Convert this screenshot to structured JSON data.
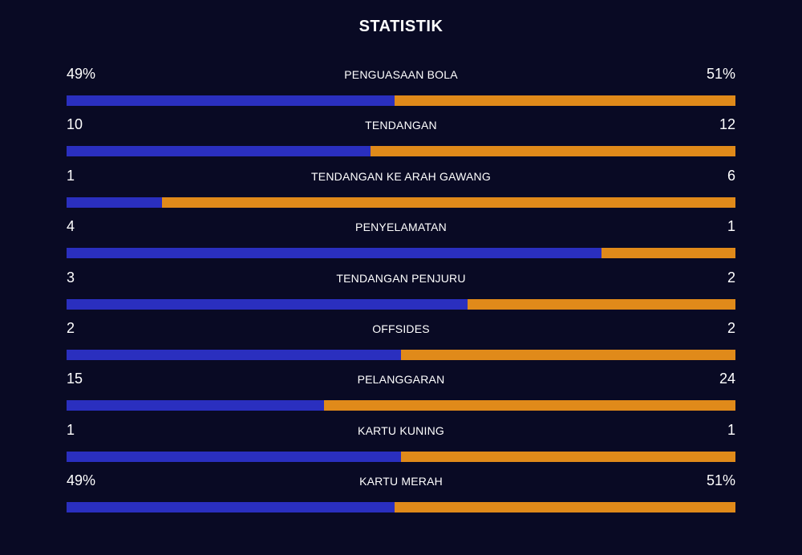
{
  "title": "STATISTIK",
  "colors": {
    "background": "#090a24",
    "home": "#2a2fbf",
    "away": "#e08a1a"
  },
  "stats": [
    {
      "label": "PENGUASAAN BOLA",
      "left": "49%",
      "right": "51%",
      "left_share": 0.49
    },
    {
      "label": "TENDANGAN",
      "left": "10",
      "right": "12",
      "left_share": 0.4545
    },
    {
      "label": "TENDANGAN KE ARAH GAWANG",
      "left": "1",
      "right": "6",
      "left_share": 0.1429
    },
    {
      "label": "PENYELAMATAN",
      "left": "4",
      "right": "1",
      "left_share": 0.8
    },
    {
      "label": "TENDANGAN PENJURU",
      "left": "3",
      "right": "2",
      "left_share": 0.6
    },
    {
      "label": "OFFSIDES",
      "left": "2",
      "right": "2",
      "left_share": 0.5
    },
    {
      "label": "PELANGGARAN",
      "left": "15",
      "right": "24",
      "left_share": 0.3846
    },
    {
      "label": "KARTU KUNING",
      "left": "1",
      "right": "1",
      "left_share": 0.5
    },
    {
      "label": "KARTU MERAH",
      "left": "49%",
      "right": "51%",
      "left_share": 0.49
    }
  ]
}
